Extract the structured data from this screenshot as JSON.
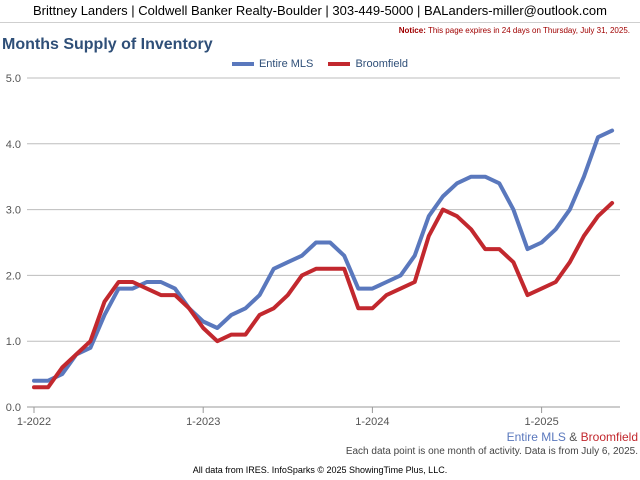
{
  "header": {
    "contact": "Brittney Landers | Coldwell Banker Realty-Boulder | 303-449-5000 | BALanders-miller@outlook.com"
  },
  "notice": {
    "label": "Notice:",
    "text": "This page expires in 24 days on Thursday, July 31, 2025."
  },
  "footer": {
    "source_label_1": "Entire MLS",
    "source_amp": "&",
    "source_label_2": "Broomfield",
    "note": "Each data point is one month of activity. Data is from July 6, 2025.",
    "credit": "All data from IRES. InfoSparks © 2025 ShowingTime Plus, LLC."
  },
  "colors": {
    "entire_mls": "#5a78bd",
    "broomfield": "#c2282e",
    "grid": "#bdbdbd",
    "title": "#2f4f78"
  },
  "chart_data": {
    "type": "line",
    "title": "Months Supply of Inventory",
    "xlabel": "",
    "ylabel": "",
    "ylim": [
      0,
      5
    ],
    "yticks": [
      "0.0",
      "1.0",
      "2.0",
      "3.0",
      "4.0",
      "5.0"
    ],
    "xticks": [
      "1-2022",
      "1-2023",
      "1-2024",
      "1-2025"
    ],
    "grid": true,
    "legend_position": "top",
    "x": [
      "2022-01",
      "2022-02",
      "2022-03",
      "2022-04",
      "2022-05",
      "2022-06",
      "2022-07",
      "2022-08",
      "2022-09",
      "2022-10",
      "2022-11",
      "2022-12",
      "2023-01",
      "2023-02",
      "2023-03",
      "2023-04",
      "2023-05",
      "2023-06",
      "2023-07",
      "2023-08",
      "2023-09",
      "2023-10",
      "2023-11",
      "2023-12",
      "2024-01",
      "2024-02",
      "2024-03",
      "2024-04",
      "2024-05",
      "2024-06",
      "2024-07",
      "2024-08",
      "2024-09",
      "2024-10",
      "2024-11",
      "2024-12",
      "2025-01",
      "2025-02",
      "2025-03",
      "2025-04",
      "2025-05",
      "2025-06"
    ],
    "series": [
      {
        "name": "Entire MLS",
        "values": [
          0.4,
          0.4,
          0.5,
          0.8,
          0.9,
          1.4,
          1.8,
          1.8,
          1.9,
          1.9,
          1.8,
          1.5,
          1.3,
          1.2,
          1.4,
          1.5,
          1.7,
          2.1,
          2.2,
          2.3,
          2.5,
          2.5,
          2.3,
          1.8,
          1.8,
          1.9,
          2.0,
          2.3,
          2.9,
          3.2,
          3.4,
          3.5,
          3.5,
          3.4,
          3.0,
          2.4,
          2.5,
          2.7,
          3.0,
          3.5,
          4.1,
          4.2
        ]
      },
      {
        "name": "Broomfield",
        "values": [
          0.3,
          0.3,
          0.6,
          0.8,
          1.0,
          1.6,
          1.9,
          1.9,
          1.8,
          1.7,
          1.7,
          1.5,
          1.2,
          1.0,
          1.1,
          1.1,
          1.4,
          1.5,
          1.7,
          2.0,
          2.1,
          2.1,
          2.1,
          1.5,
          1.5,
          1.7,
          1.8,
          1.9,
          2.6,
          3.0,
          2.9,
          2.7,
          2.4,
          2.4,
          2.2,
          1.7,
          1.8,
          1.9,
          2.2,
          2.6,
          2.9,
          3.1
        ]
      }
    ]
  }
}
